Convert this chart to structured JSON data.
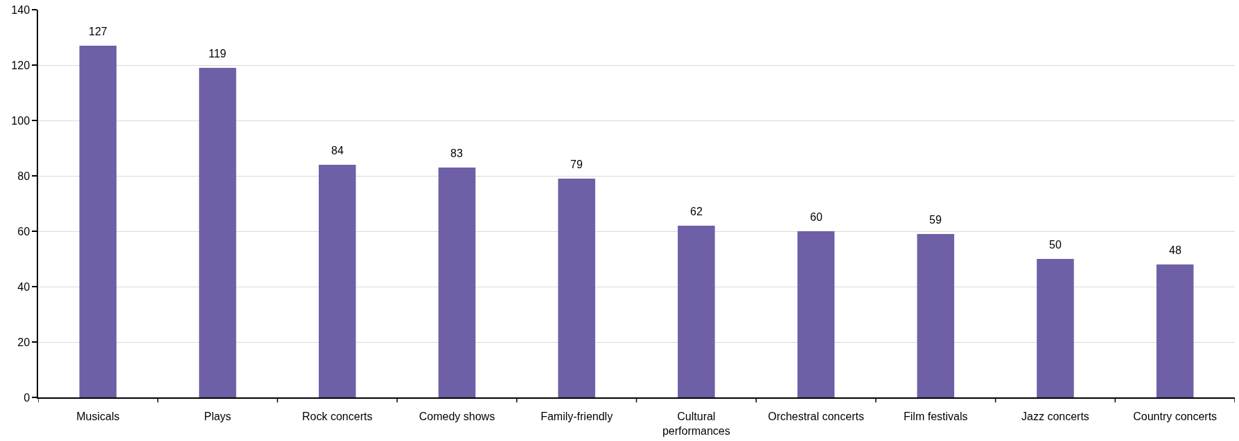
{
  "chart_data": {
    "type": "bar",
    "categories": [
      "Musicals",
      "Plays",
      "Rock concerts",
      "Comedy shows",
      "Family-friendly",
      "Cultural performances",
      "Orchestral concerts",
      "Film festivals",
      "Jazz concerts",
      "Country concerts"
    ],
    "values": [
      127,
      119,
      84,
      83,
      79,
      62,
      60,
      59,
      50,
      48
    ],
    "color": "#6f5fa7",
    "ylim": [
      0,
      140
    ],
    "yticks": [
      0,
      20,
      40,
      60,
      80,
      100,
      120,
      140
    ],
    "grid": "y",
    "data_labels": true
  }
}
